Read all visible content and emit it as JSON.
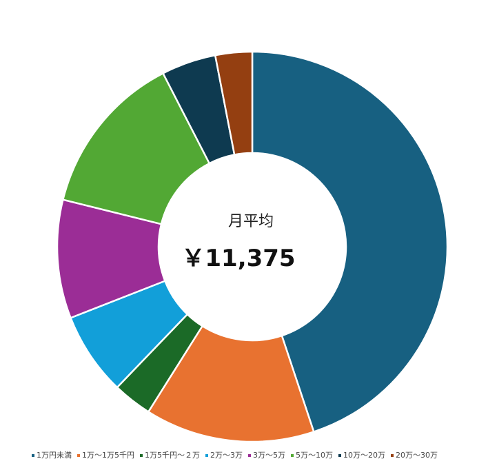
{
  "chart_data": {
    "type": "pie",
    "variant": "donut",
    "center_label": "月平均",
    "center_value": "￥11,375",
    "categories": [
      "1万円未満",
      "1万～1万5千円",
      "1万5千円～２万",
      "2万～3万",
      "3万～5万",
      "5万～10万",
      "10万～20万",
      "20万～30万"
    ],
    "values": [
      45.7,
      14.3,
      3.3,
      7.0,
      10.0,
      13.8,
      4.6,
      3.1
    ],
    "colors": [
      "#176081",
      "#E87230",
      "#1B6A27",
      "#129FD9",
      "#9B2D96",
      "#52A834",
      "#0E3A50",
      "#943F11"
    ],
    "legend_position": "bottom"
  }
}
